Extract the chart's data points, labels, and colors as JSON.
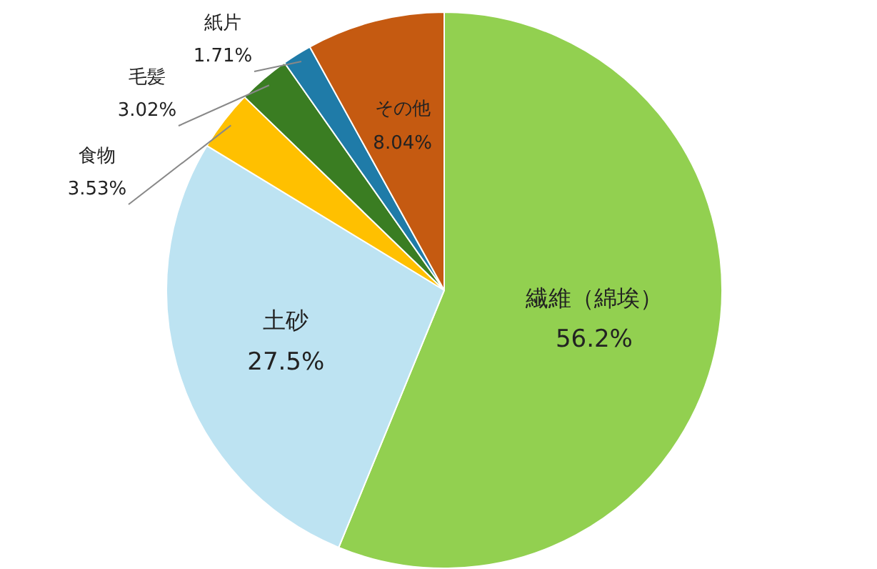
{
  "chart_data": {
    "type": "pie",
    "categories": [
      "繊維（綿埃）",
      "土砂",
      "食物",
      "毛髪",
      "紙片",
      "その他"
    ],
    "values": [
      56.2,
      27.5,
      3.53,
      3.02,
      1.71,
      8.04
    ],
    "value_labels": [
      "56.2%",
      "27.5%",
      "3.53%",
      "3.02%",
      "1.71%",
      "8.04%"
    ],
    "colors": [
      "#92d050",
      "#bde3f2",
      "#ffc000",
      "#3a7d22",
      "#1f7ba8",
      "#c55a11"
    ],
    "legend": false
  }
}
